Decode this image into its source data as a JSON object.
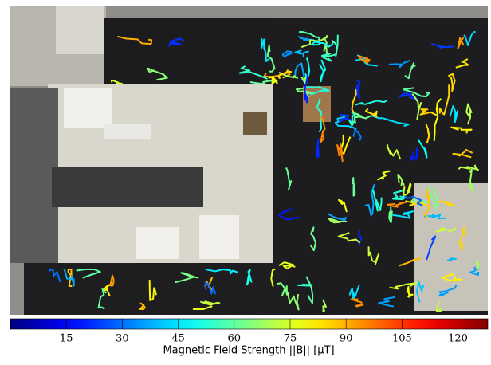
{
  "chart_data": {
    "type": "colorbar",
    "colormap": "jet",
    "xlim": [
      0,
      128
    ],
    "xticks": [
      15,
      30,
      45,
      60,
      75,
      90,
      105,
      120
    ],
    "xlabel": "Magnetic Field Strength ||B|| [μT]"
  }
}
